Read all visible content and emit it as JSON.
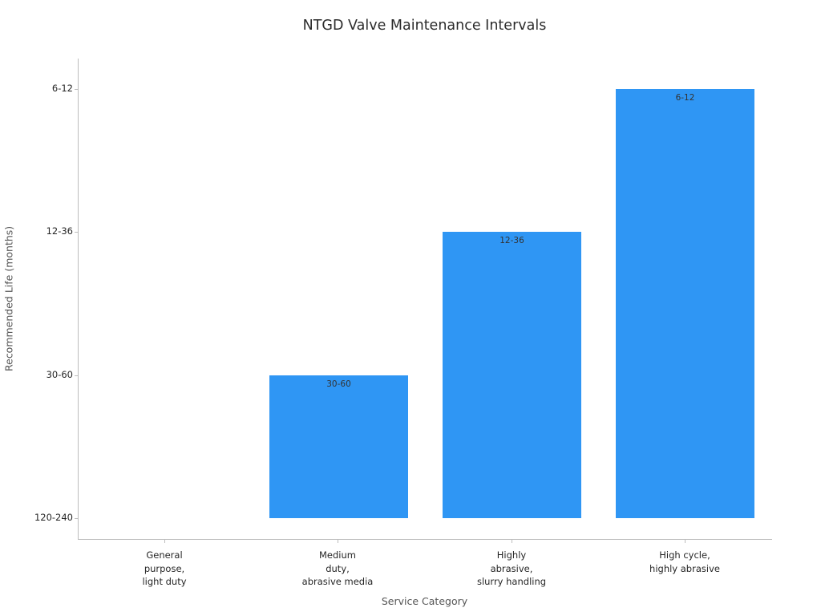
{
  "chart_data": {
    "type": "bar",
    "title": "NTGD Valve Maintenance Intervals",
    "xlabel": "Service Category",
    "ylabel": "Recommended Life (months)",
    "categories": [
      [
        "General",
        "purpose,",
        "light duty"
      ],
      [
        "Medium",
        "duty,",
        "abrasive media"
      ],
      [
        "Highly",
        "abrasive,",
        "slurry handling"
      ],
      [
        "High cycle,",
        "highly abrasive"
      ]
    ],
    "y_tick_labels": [
      "120-240",
      "30-60",
      "12-36",
      "6-12"
    ],
    "values": [
      0,
      1,
      2,
      3
    ],
    "value_labels_per_category": [
      "120-240",
      "30-60",
      "12-36",
      "6-12"
    ],
    "bar_value_labels": [
      "",
      "30-60",
      "12-36",
      "6-12"
    ],
    "bar_color": "#2f96f4",
    "background_color": "#ffffff",
    "grid": false,
    "legend": false
  }
}
